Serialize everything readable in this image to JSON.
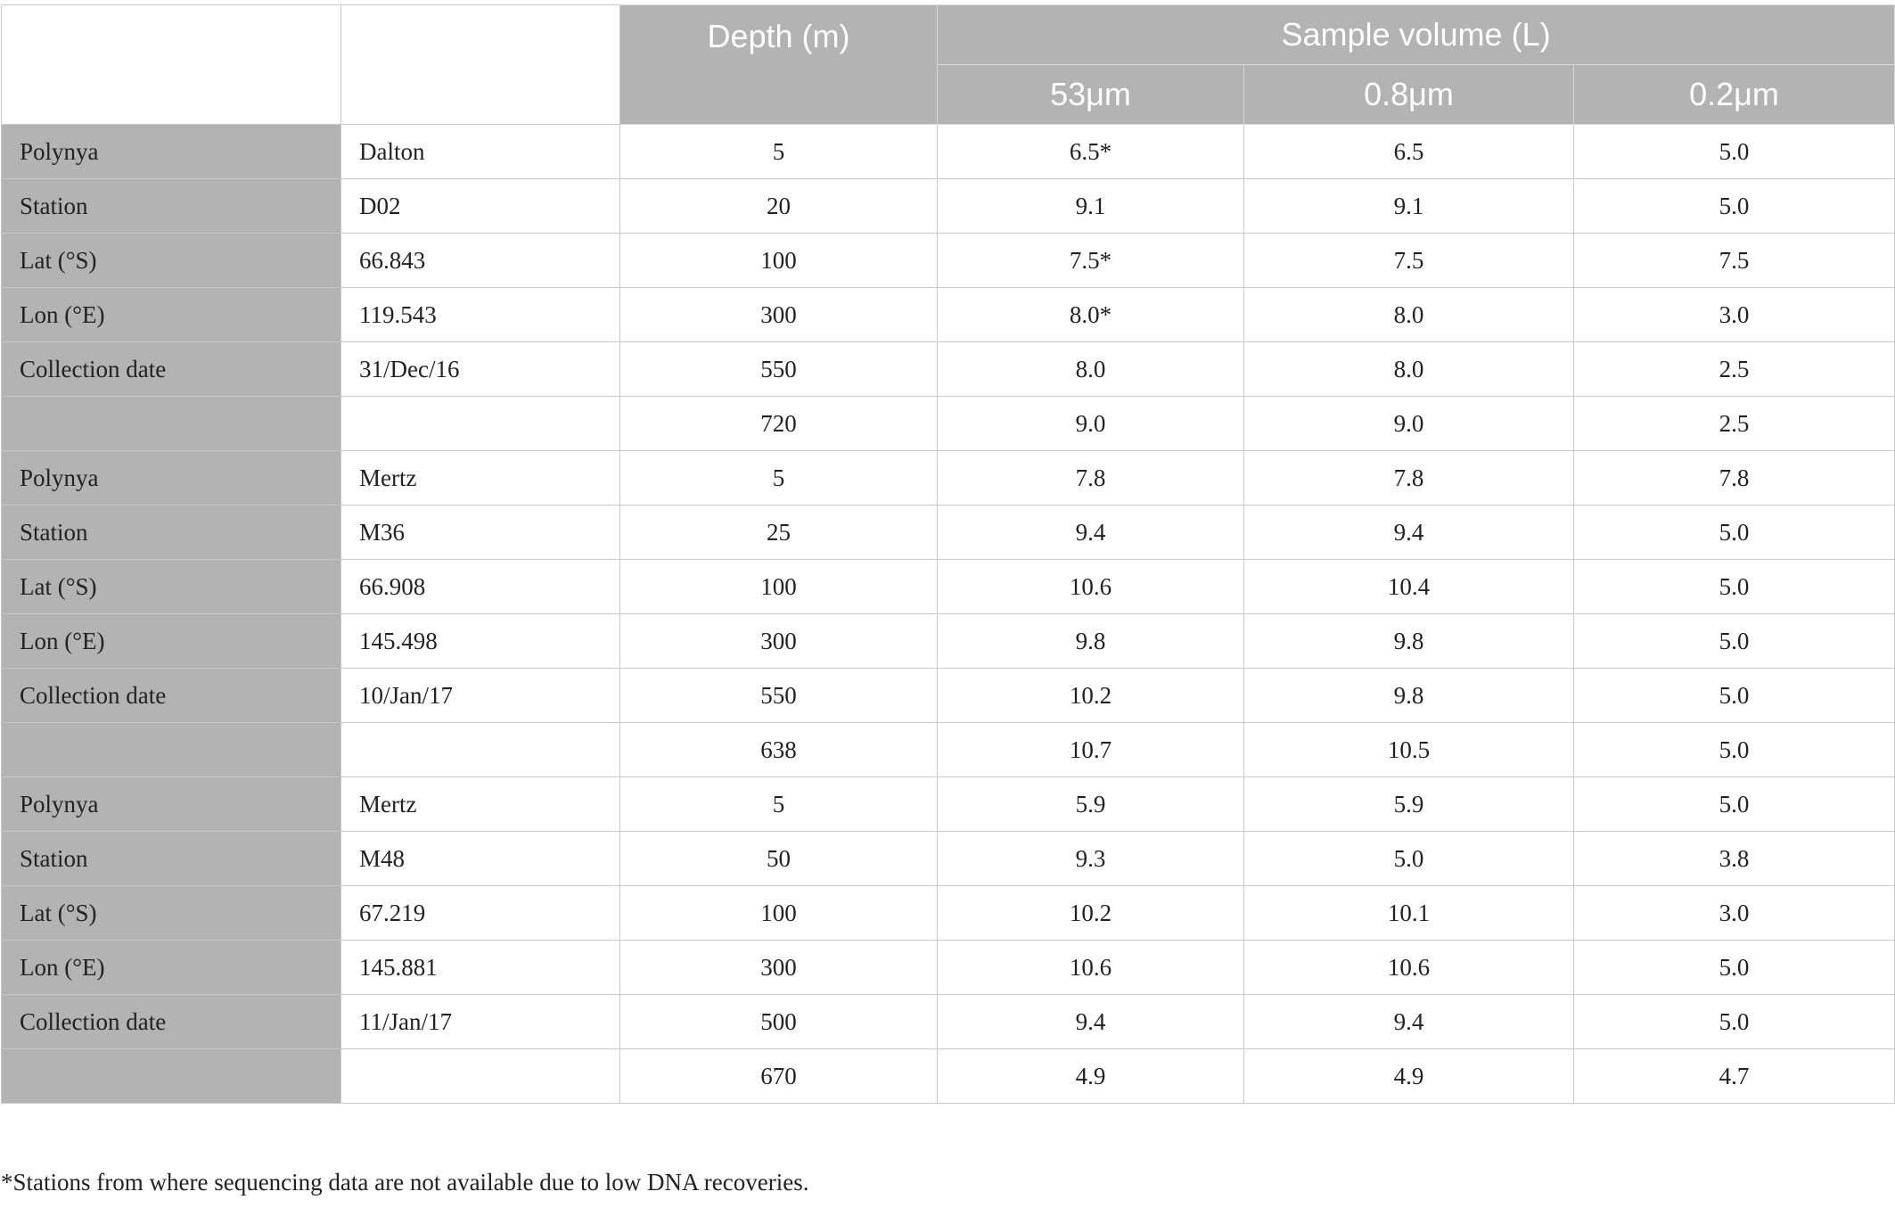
{
  "header": {
    "depth_label": "Depth (m)",
    "sample_volume_label": "Sample volume (L)",
    "sizes": [
      "53μm",
      "0.8μm",
      "0.2μm"
    ]
  },
  "rows": [
    {
      "label": "Polynya",
      "meta": "Dalton",
      "depth": "5",
      "v53": "6.5*",
      "v08": "6.5",
      "v02": "5.0"
    },
    {
      "label": "Station",
      "meta": "D02",
      "depth": "20",
      "v53": "9.1",
      "v08": "9.1",
      "v02": "5.0"
    },
    {
      "label": "Lat (°S)",
      "meta": "66.843",
      "depth": "100",
      "v53": "7.5*",
      "v08": "7.5",
      "v02": "7.5"
    },
    {
      "label": "Lon (°E)",
      "meta": "119.543",
      "depth": "300",
      "v53": "8.0*",
      "v08": "8.0",
      "v02": "3.0"
    },
    {
      "label": "Collection date",
      "meta": "31/Dec/16",
      "depth": "550",
      "v53": "8.0",
      "v08": "8.0",
      "v02": "2.5"
    },
    {
      "label": "",
      "meta": "",
      "depth": "720",
      "v53": "9.0",
      "v08": "9.0",
      "v02": "2.5"
    },
    {
      "label": "Polynya",
      "meta": "Mertz",
      "depth": "5",
      "v53": "7.8",
      "v08": "7.8",
      "v02": "7.8"
    },
    {
      "label": "Station",
      "meta": "M36",
      "depth": "25",
      "v53": "9.4",
      "v08": "9.4",
      "v02": "5.0"
    },
    {
      "label": "Lat (°S)",
      "meta": "66.908",
      "depth": "100",
      "v53": "10.6",
      "v08": "10.4",
      "v02": "5.0"
    },
    {
      "label": "Lon (°E)",
      "meta": "145.498",
      "depth": "300",
      "v53": "9.8",
      "v08": "9.8",
      "v02": "5.0"
    },
    {
      "label": "Collection date",
      "meta": "10/Jan/17",
      "depth": "550",
      "v53": "10.2",
      "v08": "9.8",
      "v02": "5.0"
    },
    {
      "label": "",
      "meta": "",
      "depth": "638",
      "v53": "10.7",
      "v08": "10.5",
      "v02": "5.0"
    },
    {
      "label": "Polynya",
      "meta": "Mertz",
      "depth": "5",
      "v53": "5.9",
      "v08": "5.9",
      "v02": "5.0"
    },
    {
      "label": "Station",
      "meta": "M48",
      "depth": "50",
      "v53": "9.3",
      "v08": "5.0",
      "v02": "3.8"
    },
    {
      "label": "Lat (°S)",
      "meta": "67.219",
      "depth": "100",
      "v53": "10.2",
      "v08": "10.1",
      "v02": "3.0"
    },
    {
      "label": "Lon (°E)",
      "meta": "145.881",
      "depth": "300",
      "v53": "10.6",
      "v08": "10.6",
      "v02": "5.0"
    },
    {
      "label": "Collection date",
      "meta": "11/Jan/17",
      "depth": "500",
      "v53": "9.4",
      "v08": "9.4",
      "v02": "5.0"
    },
    {
      "label": "",
      "meta": "",
      "depth": "670",
      "v53": "4.9",
      "v08": "4.9",
      "v02": "4.7"
    }
  ],
  "footnote": "*Stations from where sequencing data are not available due to low DNA recoveries."
}
